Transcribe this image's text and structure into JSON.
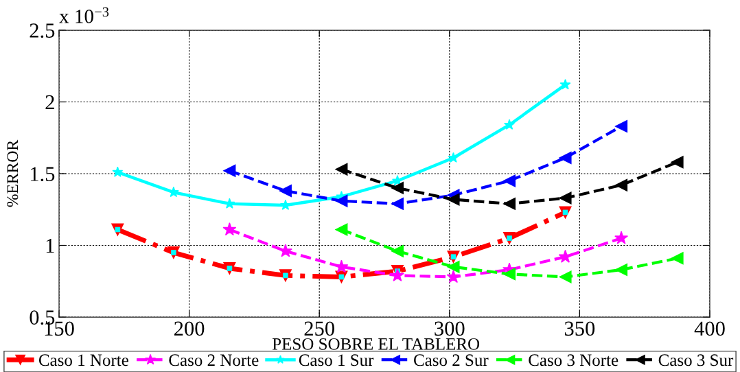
{
  "chart_data": {
    "type": "line",
    "xlabel": "PESO SOBRE EL TABLERO",
    "ylabel": "%ERROR",
    "annotations": [
      "x 10$^{−3}$"
    ],
    "xlim": [
      150,
      400
    ],
    "xticks": [
      150,
      200,
      250,
      300,
      350,
      400
    ],
    "ylim": [
      0.5,
      2.5
    ],
    "yticks": [
      0.5,
      1,
      1.5,
      2,
      2.5
    ],
    "grid": true,
    "legend": "bottom",
    "series": [
      {
        "name": "Caso 1 Norte",
        "color": "#ff0000",
        "marker": "triangle-down",
        "line_style": "dashdot",
        "x": [
          172.5,
          194,
          215.5,
          237,
          258.5,
          280,
          301.5,
          323,
          344.5
        ],
        "values": [
          1.11,
          0.95,
          0.84,
          0.79,
          0.78,
          0.82,
          0.92,
          1.05,
          1.23
        ]
      },
      {
        "type": "scatter",
        "color": "#00ffff",
        "marker": "square",
        "x": [
          172.5,
          194,
          215.5,
          237,
          258.5,
          280,
          301.5,
          323,
          344.5
        ],
        "values": [
          1.11,
          0.95,
          0.84,
          0.79,
          0.78,
          0.82,
          0.92,
          1.05,
          1.23
        ]
      },
      {
        "name": "Caso 2 Norte",
        "color": "#ff00ff",
        "marker": "star",
        "line_style": "dashed",
        "x": [
          215.5,
          237,
          258.5,
          280,
          301.5,
          323,
          344.5,
          366
        ],
        "values": [
          1.11,
          0.96,
          0.85,
          0.79,
          0.78,
          0.83,
          0.92,
          1.05
        ]
      },
      {
        "name": "Caso 1 Sur",
        "color": "#00ffff",
        "marker": "star",
        "line_style": "solid",
        "x": [
          172.5,
          194,
          215.5,
          237,
          258.5,
          280,
          301.5,
          323,
          344.5
        ],
        "values": [
          1.51,
          1.37,
          1.29,
          1.28,
          1.34,
          1.45,
          1.61,
          1.84,
          2.12
        ]
      },
      {
        "name": "Caso 2 Sur",
        "color": "#0000ff",
        "marker": "triangle-left",
        "line_style": "dashed",
        "x": [
          215.5,
          237,
          258.5,
          280,
          301.5,
          323,
          344.5,
          366
        ],
        "values": [
          1.52,
          1.38,
          1.31,
          1.29,
          1.35,
          1.45,
          1.61,
          1.83
        ]
      },
      {
        "name": "Caso 3 Norte",
        "color": "#00ff00",
        "marker": "triangle-left",
        "line_style": "dashed",
        "x": [
          258.5,
          280,
          301.5,
          323,
          344.5,
          366,
          387.5
        ],
        "values": [
          1.11,
          0.96,
          0.85,
          0.8,
          0.78,
          0.83,
          0.91
        ]
      },
      {
        "name": "Caso 3 Sur",
        "color": "#000000",
        "marker": "triangle-left",
        "line_style": "dashed",
        "x": [
          258.5,
          280,
          301.5,
          323,
          344.5,
          366,
          387.5
        ],
        "values": [
          1.53,
          1.4,
          1.32,
          1.29,
          1.33,
          1.42,
          1.58
        ]
      }
    ]
  }
}
